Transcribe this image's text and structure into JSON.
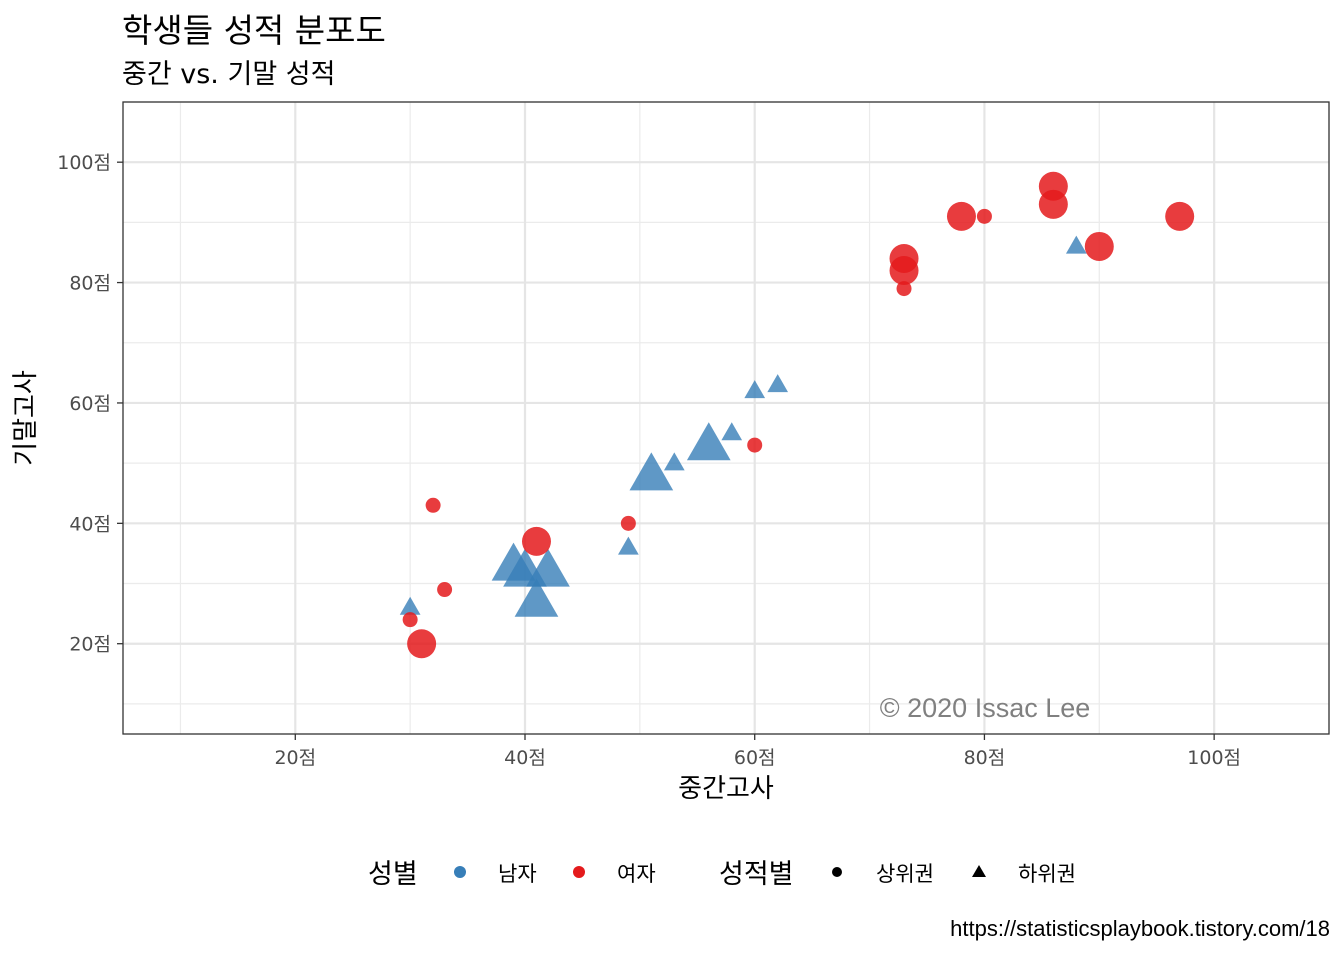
{
  "chart_data": {
    "type": "scatter",
    "title": "학생들 성적 분포도",
    "subtitle": "중간 vs. 기말 성적",
    "xlabel": "중간고사",
    "ylabel": "기말고사",
    "xlim": [
      5,
      110
    ],
    "ylim": [
      5,
      110
    ],
    "x_ticks": [
      20,
      40,
      60,
      80,
      100
    ],
    "y_ticks": [
      20,
      40,
      60,
      80,
      100
    ],
    "x_tick_labels": [
      "20점",
      "40점",
      "60점",
      "80점",
      "100점"
    ],
    "y_tick_labels": [
      "20점",
      "40점",
      "60점",
      "80점",
      "100점"
    ],
    "grid": true,
    "legend_position": "bottom",
    "annotation": "© 2020 Issac Lee",
    "caption": "https://statisticsplaybook.tistory.com/18",
    "legend": {
      "color_title": "성별",
      "shape_title": "성적별",
      "color_entries": [
        {
          "label": "남자",
          "color": "#377EB8"
        },
        {
          "label": "여자",
          "color": "#E41A1C"
        }
      ],
      "shape_entries": [
        {
          "label": "상위권",
          "shape": "circle"
        },
        {
          "label": "하위권",
          "shape": "triangle"
        }
      ]
    },
    "colors": {
      "남자": "#377EB8",
      "여자": "#E41A1C"
    },
    "series": [
      {
        "name": "남자",
        "points": [
          {
            "x": 30,
            "y": 26,
            "shape": "triangle",
            "size": 1
          },
          {
            "x": 39,
            "y": 33,
            "shape": "triangle",
            "size": 3
          },
          {
            "x": 40,
            "y": 32,
            "shape": "triangle",
            "size": 3
          },
          {
            "x": 42,
            "y": 32,
            "shape": "triangle",
            "size": 3
          },
          {
            "x": 41,
            "y": 27,
            "shape": "triangle",
            "size": 3
          },
          {
            "x": 49,
            "y": 36,
            "shape": "triangle",
            "size": 1
          },
          {
            "x": 51,
            "y": 48,
            "shape": "triangle",
            "size": 3
          },
          {
            "x": 53,
            "y": 50,
            "shape": "triangle",
            "size": 1
          },
          {
            "x": 56,
            "y": 53,
            "shape": "triangle",
            "size": 3
          },
          {
            "x": 58,
            "y": 55,
            "shape": "triangle",
            "size": 1
          },
          {
            "x": 60,
            "y": 62,
            "shape": "triangle",
            "size": 1
          },
          {
            "x": 62,
            "y": 63,
            "shape": "triangle",
            "size": 1
          },
          {
            "x": 88,
            "y": 86,
            "shape": "triangle",
            "size": 1
          }
        ]
      },
      {
        "name": "여자",
        "points": [
          {
            "x": 30,
            "y": 24,
            "shape": "circle",
            "size": 1
          },
          {
            "x": 31,
            "y": 20,
            "shape": "circle",
            "size": 3
          },
          {
            "x": 32,
            "y": 43,
            "shape": "circle",
            "size": 1
          },
          {
            "x": 33,
            "y": 29,
            "shape": "circle",
            "size": 1
          },
          {
            "x": 41,
            "y": 37,
            "shape": "circle",
            "size": 3
          },
          {
            "x": 49,
            "y": 40,
            "shape": "circle",
            "size": 1
          },
          {
            "x": 60,
            "y": 53,
            "shape": "circle",
            "size": 1
          },
          {
            "x": 73,
            "y": 84,
            "shape": "circle",
            "size": 3
          },
          {
            "x": 73,
            "y": 82,
            "shape": "circle",
            "size": 3
          },
          {
            "x": 73,
            "y": 79,
            "shape": "circle",
            "size": 1
          },
          {
            "x": 78,
            "y": 91,
            "shape": "circle",
            "size": 3
          },
          {
            "x": 80,
            "y": 91,
            "shape": "circle",
            "size": 1
          },
          {
            "x": 86,
            "y": 96,
            "shape": "circle",
            "size": 3
          },
          {
            "x": 86,
            "y": 93,
            "shape": "circle",
            "size": 3
          },
          {
            "x": 90,
            "y": 86,
            "shape": "circle",
            "size": 3
          },
          {
            "x": 97,
            "y": 91,
            "shape": "circle",
            "size": 3
          }
        ]
      }
    ]
  }
}
